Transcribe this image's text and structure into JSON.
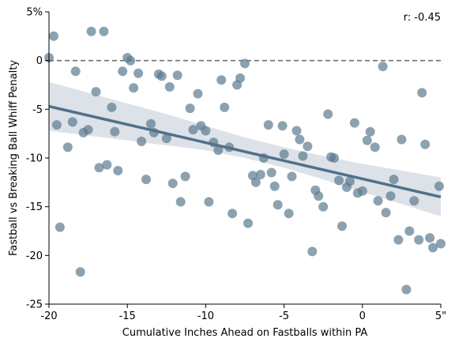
{
  "chart_data": {
    "type": "scatter",
    "title": "",
    "xlabel": "Cumulative Inches Ahead on Fastballs within PA",
    "ylabel": "Fastball vs Breaking Ball Whiff Penalty",
    "annotation": "r: -0.45",
    "xlim": [
      -20,
      5
    ],
    "ylim": [
      -25,
      5
    ],
    "x_ticks": [
      -20,
      -15,
      -10,
      -5,
      0,
      5
    ],
    "x_tick_labels": [
      "-20",
      "-15",
      "-10",
      "-5",
      "0",
      "5\""
    ],
    "y_ticks": [
      5,
      0,
      -5,
      -10,
      -15,
      -20,
      -25
    ],
    "y_tick_labels": [
      "5%",
      "0",
      "-5",
      "-10",
      "-15",
      "-20",
      "-25"
    ],
    "reference_line_y": 0,
    "regression": {
      "x": [
        -20,
        5
      ],
      "y": [
        -4.7,
        -14.0
      ]
    },
    "confidence_band": {
      "x": [
        -20,
        -17.5,
        -15,
        -12.5,
        -10,
        -7.5,
        -5,
        -2.5,
        0,
        2.5,
        5
      ],
      "upper": [
        -2.2,
        -3.3,
        -4.4,
        -5.5,
        -6.7,
        -7.9,
        -8.9,
        -9.8,
        -10.6,
        -11.3,
        -12.0
      ],
      "lower": [
        -7.2,
        -7.7,
        -8.2,
        -8.7,
        -9.2,
        -10.0,
        -11.0,
        -12.2,
        -13.5,
        -14.7,
        -16.0
      ]
    },
    "grid": false,
    "colors": {
      "points": "#5b7a8f",
      "regression": "#4f718a",
      "band": "#d9dee6",
      "reference": "#707070",
      "axis": "#000000"
    },
    "series": [
      {
        "points": [
          [
            -20.0,
            0.3
          ],
          [
            -19.7,
            2.5
          ],
          [
            -19.5,
            -6.6
          ],
          [
            -19.3,
            -17.1
          ],
          [
            -18.8,
            -8.9
          ],
          [
            -18.5,
            -6.3
          ],
          [
            -18.3,
            -1.1
          ],
          [
            -18.0,
            -21.7
          ],
          [
            -17.8,
            -7.4
          ],
          [
            -17.5,
            -7.1
          ],
          [
            -17.3,
            3.0
          ],
          [
            -17.0,
            -3.2
          ],
          [
            -16.8,
            -11.0
          ],
          [
            -16.5,
            3.0
          ],
          [
            -16.3,
            -10.7
          ],
          [
            -16.0,
            -4.8
          ],
          [
            -15.8,
            -7.3
          ],
          [
            -15.6,
            -11.3
          ],
          [
            -15.3,
            -1.1
          ],
          [
            -15.0,
            0.3
          ],
          [
            -14.8,
            0.0
          ],
          [
            -14.6,
            -2.8
          ],
          [
            -14.3,
            -1.3
          ],
          [
            -14.1,
            -8.3
          ],
          [
            -13.8,
            -12.2
          ],
          [
            -13.5,
            -6.5
          ],
          [
            -13.3,
            -7.4
          ],
          [
            -13.0,
            -1.4
          ],
          [
            -12.8,
            -1.6
          ],
          [
            -12.5,
            -8.0
          ],
          [
            -12.3,
            -2.7
          ],
          [
            -12.1,
            -12.6
          ],
          [
            -11.8,
            -1.5
          ],
          [
            -11.6,
            -14.5
          ],
          [
            -11.3,
            -11.9
          ],
          [
            -11.0,
            -4.9
          ],
          [
            -10.8,
            -7.1
          ],
          [
            -10.5,
            -3.4
          ],
          [
            -10.3,
            -6.7
          ],
          [
            -10.0,
            -7.2
          ],
          [
            -9.8,
            -14.5
          ],
          [
            -9.5,
            -8.4
          ],
          [
            -9.2,
            -9.2
          ],
          [
            -9.0,
            -2.0
          ],
          [
            -8.8,
            -4.8
          ],
          [
            -8.5,
            -8.9
          ],
          [
            -8.3,
            -15.7
          ],
          [
            -8.0,
            -2.5
          ],
          [
            -7.8,
            -1.8
          ],
          [
            -7.5,
            -0.3
          ],
          [
            -7.3,
            -16.7
          ],
          [
            -7.0,
            -11.8
          ],
          [
            -6.8,
            -12.5
          ],
          [
            -6.5,
            -11.7
          ],
          [
            -6.3,
            -10.0
          ],
          [
            -6.0,
            -6.6
          ],
          [
            -5.8,
            -11.5
          ],
          [
            -5.6,
            -12.9
          ],
          [
            -5.4,
            -14.8
          ],
          [
            -5.1,
            -6.7
          ],
          [
            -5.0,
            -9.6
          ],
          [
            -4.7,
            -15.7
          ],
          [
            -4.5,
            -11.9
          ],
          [
            -4.2,
            -7.2
          ],
          [
            -4.0,
            -8.1
          ],
          [
            -3.8,
            -9.8
          ],
          [
            -3.5,
            -8.8
          ],
          [
            -3.2,
            -19.6
          ],
          [
            -3.0,
            -13.3
          ],
          [
            -2.8,
            -13.9
          ],
          [
            -2.5,
            -15.0
          ],
          [
            -2.2,
            -5.5
          ],
          [
            -2.0,
            -9.9
          ],
          [
            -1.8,
            -10.0
          ],
          [
            -1.5,
            -12.3
          ],
          [
            -1.3,
            -17.0
          ],
          [
            -1.0,
            -13.0
          ],
          [
            -0.8,
            -12.4
          ],
          [
            -0.5,
            -6.4
          ],
          [
            -0.3,
            -13.6
          ],
          [
            0.0,
            -13.4
          ],
          [
            0.3,
            -8.2
          ],
          [
            0.5,
            -7.3
          ],
          [
            0.8,
            -8.9
          ],
          [
            1.0,
            -14.4
          ],
          [
            1.3,
            -0.6
          ],
          [
            1.5,
            -15.6
          ],
          [
            1.8,
            -13.9
          ],
          [
            2.0,
            -12.2
          ],
          [
            2.3,
            -18.4
          ],
          [
            2.5,
            -8.1
          ],
          [
            2.8,
            -23.5
          ],
          [
            3.0,
            -17.5
          ],
          [
            3.3,
            -14.4
          ],
          [
            3.6,
            -18.4
          ],
          [
            3.8,
            -3.3
          ],
          [
            4.0,
            -8.6
          ],
          [
            4.3,
            -18.2
          ],
          [
            4.5,
            -19.2
          ],
          [
            4.9,
            -12.9
          ],
          [
            5.0,
            -18.8
          ]
        ]
      }
    ]
  }
}
